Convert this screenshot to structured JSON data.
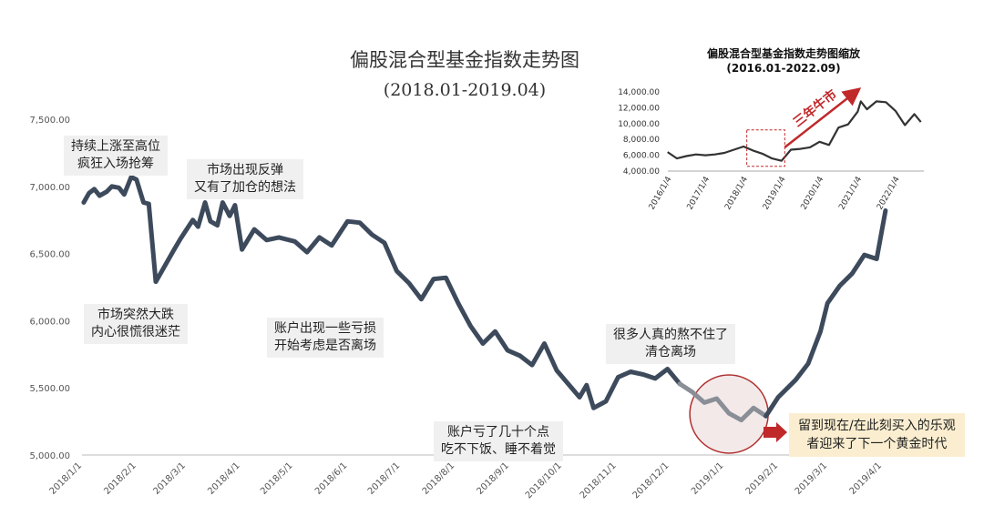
{
  "main_chart": {
    "title": "偏股混合型基金指数走势图",
    "subtitle": "(2018.01-2019.04)"
  },
  "annotations": {
    "peak": "持续上涨至高位\n疯狂入场抢筹",
    "crash": "市场突然大跌\n内心很慌很迷茫",
    "rebound": "市场出现反弹\n又有了加仓的想法",
    "losses": "账户出现一些亏损\n开始考虑是否离场",
    "big_loss": "账户亏了几十个点\n吃不下饭、睡不着觉",
    "capitulate": "很多人真的熬不住了\n清仓离场",
    "golden": "留到现在/在此刻买入的乐观\n者迎来了下一个黄金时代"
  },
  "inset_chart": {
    "title": "偏股混合型基金指数走势图缩放",
    "subtitle": "(2016.01-2022.09)",
    "arrow_label": "三年牛市"
  },
  "colors": {
    "main_line": "#3d4a5c",
    "highlight_line": "#8a8e96",
    "circle_border": "#b03030",
    "circle_fill": "#f3e9e9",
    "arrow_red": "#c0282a",
    "inset_line": "#333333",
    "callout_bg": "#fbeed0",
    "annotation_bg": "#f0f0f0"
  },
  "chart_data": [
    {
      "type": "line",
      "yticks": [
        "7,500.00",
        "7,000.00",
        "6,500.00",
        "6,000.00",
        "5,500.00",
        "5,000.00"
      ],
      "ylim": [
        5000,
        7500
      ],
      "xticks": [
        "2018/1/1",
        "2018/2/1",
        "2018/3/1",
        "2018/4/1",
        "2018/5/1",
        "2018/6/1",
        "2018/7/1",
        "2018/8/1",
        "2018/9/1",
        "2018/10/1",
        "2018/11/1",
        "2018/12/1",
        "2019/1/1",
        "2019/2/1",
        "2019/3/1",
        "2019/4/1"
      ],
      "x": [
        "2018-01-02",
        "2018-01-05",
        "2018-01-08",
        "2018-01-11",
        "2018-01-15",
        "2018-01-18",
        "2018-01-22",
        "2018-01-25",
        "2018-01-29",
        "2018-02-01",
        "2018-02-05",
        "2018-02-08",
        "2018-02-12",
        "2018-02-22",
        "2018-02-26",
        "2018-03-01",
        "2018-03-05",
        "2018-03-08",
        "2018-03-12",
        "2018-03-15",
        "2018-03-19",
        "2018-03-22",
        "2018-03-26",
        "2018-03-29",
        "2018-04-02",
        "2018-04-09",
        "2018-04-16",
        "2018-04-23",
        "2018-05-02",
        "2018-05-09",
        "2018-05-16",
        "2018-05-23",
        "2018-06-01",
        "2018-06-08",
        "2018-06-15",
        "2018-06-22",
        "2018-06-29",
        "2018-07-06",
        "2018-07-13",
        "2018-07-20",
        "2018-07-27",
        "2018-08-03",
        "2018-08-10",
        "2018-08-17",
        "2018-08-24",
        "2018-08-31",
        "2018-09-07",
        "2018-09-14",
        "2018-09-21",
        "2018-09-28",
        "2018-10-11",
        "2018-10-15",
        "2018-10-19",
        "2018-10-26",
        "2018-11-02",
        "2018-11-09",
        "2018-11-16",
        "2018-11-23",
        "2018-11-30",
        "2018-12-07",
        "2018-12-14",
        "2018-12-21",
        "2018-12-28",
        "2019-01-04",
        "2019-01-11",
        "2019-01-18",
        "2019-01-25",
        "2019-02-01",
        "2019-02-11",
        "2019-02-18",
        "2019-02-25",
        "2019-03-01",
        "2019-03-08",
        "2019-03-15",
        "2019-03-22",
        "2019-03-29",
        "2019-04-03"
      ],
      "values": [
        6880,
        6950,
        6980,
        6930,
        6960,
        7000,
        6990,
        6940,
        7070,
        7050,
        6880,
        6870,
        6290,
        6520,
        6610,
        6670,
        6750,
        6700,
        6880,
        6740,
        6710,
        6880,
        6780,
        6860,
        6530,
        6680,
        6600,
        6620,
        6590,
        6510,
        6620,
        6560,
        6740,
        6730,
        6640,
        6580,
        6370,
        6280,
        6160,
        6310,
        6320,
        6130,
        5960,
        5830,
        5920,
        5780,
        5740,
        5670,
        5830,
        5630,
        5430,
        5520,
        5350,
        5400,
        5580,
        5620,
        5600,
        5570,
        5640,
        5530,
        5470,
        5390,
        5420,
        5310,
        5260,
        5350,
        5290,
        5430,
        5560,
        5680,
        5920,
        6130,
        6260,
        6350,
        6490,
        6460,
        6820
      ],
      "highlight_range": [
        "2018-12-14",
        "2019-01-25"
      ]
    },
    {
      "type": "line",
      "yticks": [
        "14,000.00",
        "12,000.00",
        "10,000.00",
        "8,000.00",
        "6,000.00",
        "4,000.00"
      ],
      "ylim": [
        4000,
        14000
      ],
      "xticks": [
        "2016/1/4",
        "2017/1/4",
        "2018/1/4",
        "2019/1/4",
        "2020/1/4",
        "2021/1/4",
        "2022/1/4"
      ],
      "x": [
        "2016-01",
        "2016-04",
        "2016-07",
        "2016-10",
        "2017-01",
        "2017-04",
        "2017-07",
        "2017-10",
        "2018-01",
        "2018-04",
        "2018-07",
        "2018-10",
        "2019-01",
        "2019-04",
        "2019-07",
        "2019-10",
        "2020-01",
        "2020-04",
        "2020-07",
        "2020-10",
        "2021-01",
        "2021-02",
        "2021-04",
        "2021-07",
        "2021-10",
        "2022-01",
        "2022-04",
        "2022-07",
        "2022-09"
      ],
      "values": [
        6400,
        5600,
        5900,
        6100,
        6000,
        6100,
        6300,
        6700,
        7100,
        6600,
        6200,
        5600,
        5300,
        6700,
        6800,
        7000,
        7700,
        7300,
        9500,
        9900,
        11500,
        12800,
        11800,
        12800,
        12700,
        11600,
        9800,
        11200,
        10200
      ],
      "highlight_range": [
        "2018-02",
        "2019-02"
      ]
    }
  ]
}
